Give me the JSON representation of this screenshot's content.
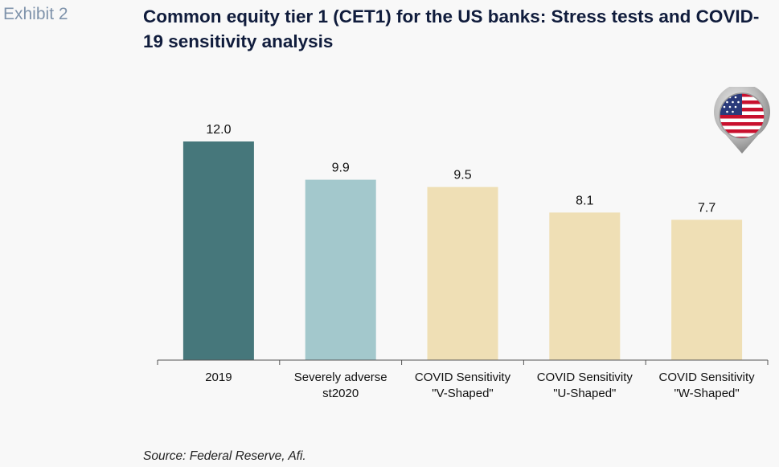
{
  "header": {
    "exhibit_label": "Exhibit 2",
    "title": "Common equity tier 1 (CET1) for the US banks: Stress tests and COVID-19 sensitivity analysis"
  },
  "footer": {
    "source": "Source: Federal Reserve, Afi."
  },
  "flag_icon": "us-flag-map-pin-icon",
  "colors": {
    "bar_2019": "#46777b",
    "bar_adverse": "#a3c8cc",
    "bar_covid": "#efdfb5",
    "title": "#101c3c",
    "exhibit": "#7f93ab"
  },
  "chart_data": {
    "type": "bar",
    "title": "Common equity tier 1 (CET1) for the US banks: Stress tests and COVID-19 sensitivity analysis",
    "categories": [
      [
        "2019"
      ],
      [
        "Severely adverse",
        "st2020"
      ],
      [
        "COVID Sensitivity",
        "\"V-Shaped\""
      ],
      [
        "COVID Sensitivity",
        "\"U-Shaped\""
      ],
      [
        "COVID Sensitivity",
        "\"W-Shaped\""
      ]
    ],
    "values": [
      12.0,
      9.9,
      9.5,
      8.1,
      7.7
    ],
    "data_labels": [
      "12.0",
      "9.9",
      "9.5",
      "8.1",
      "7.7"
    ],
    "bar_colors": [
      "#46777b",
      "#a3c8cc",
      "#efdfb5",
      "#efdfb5",
      "#efdfb5"
    ],
    "ylim": [
      0,
      12
    ],
    "xlabel": "",
    "ylabel": "",
    "grid": false,
    "legend": "none"
  }
}
